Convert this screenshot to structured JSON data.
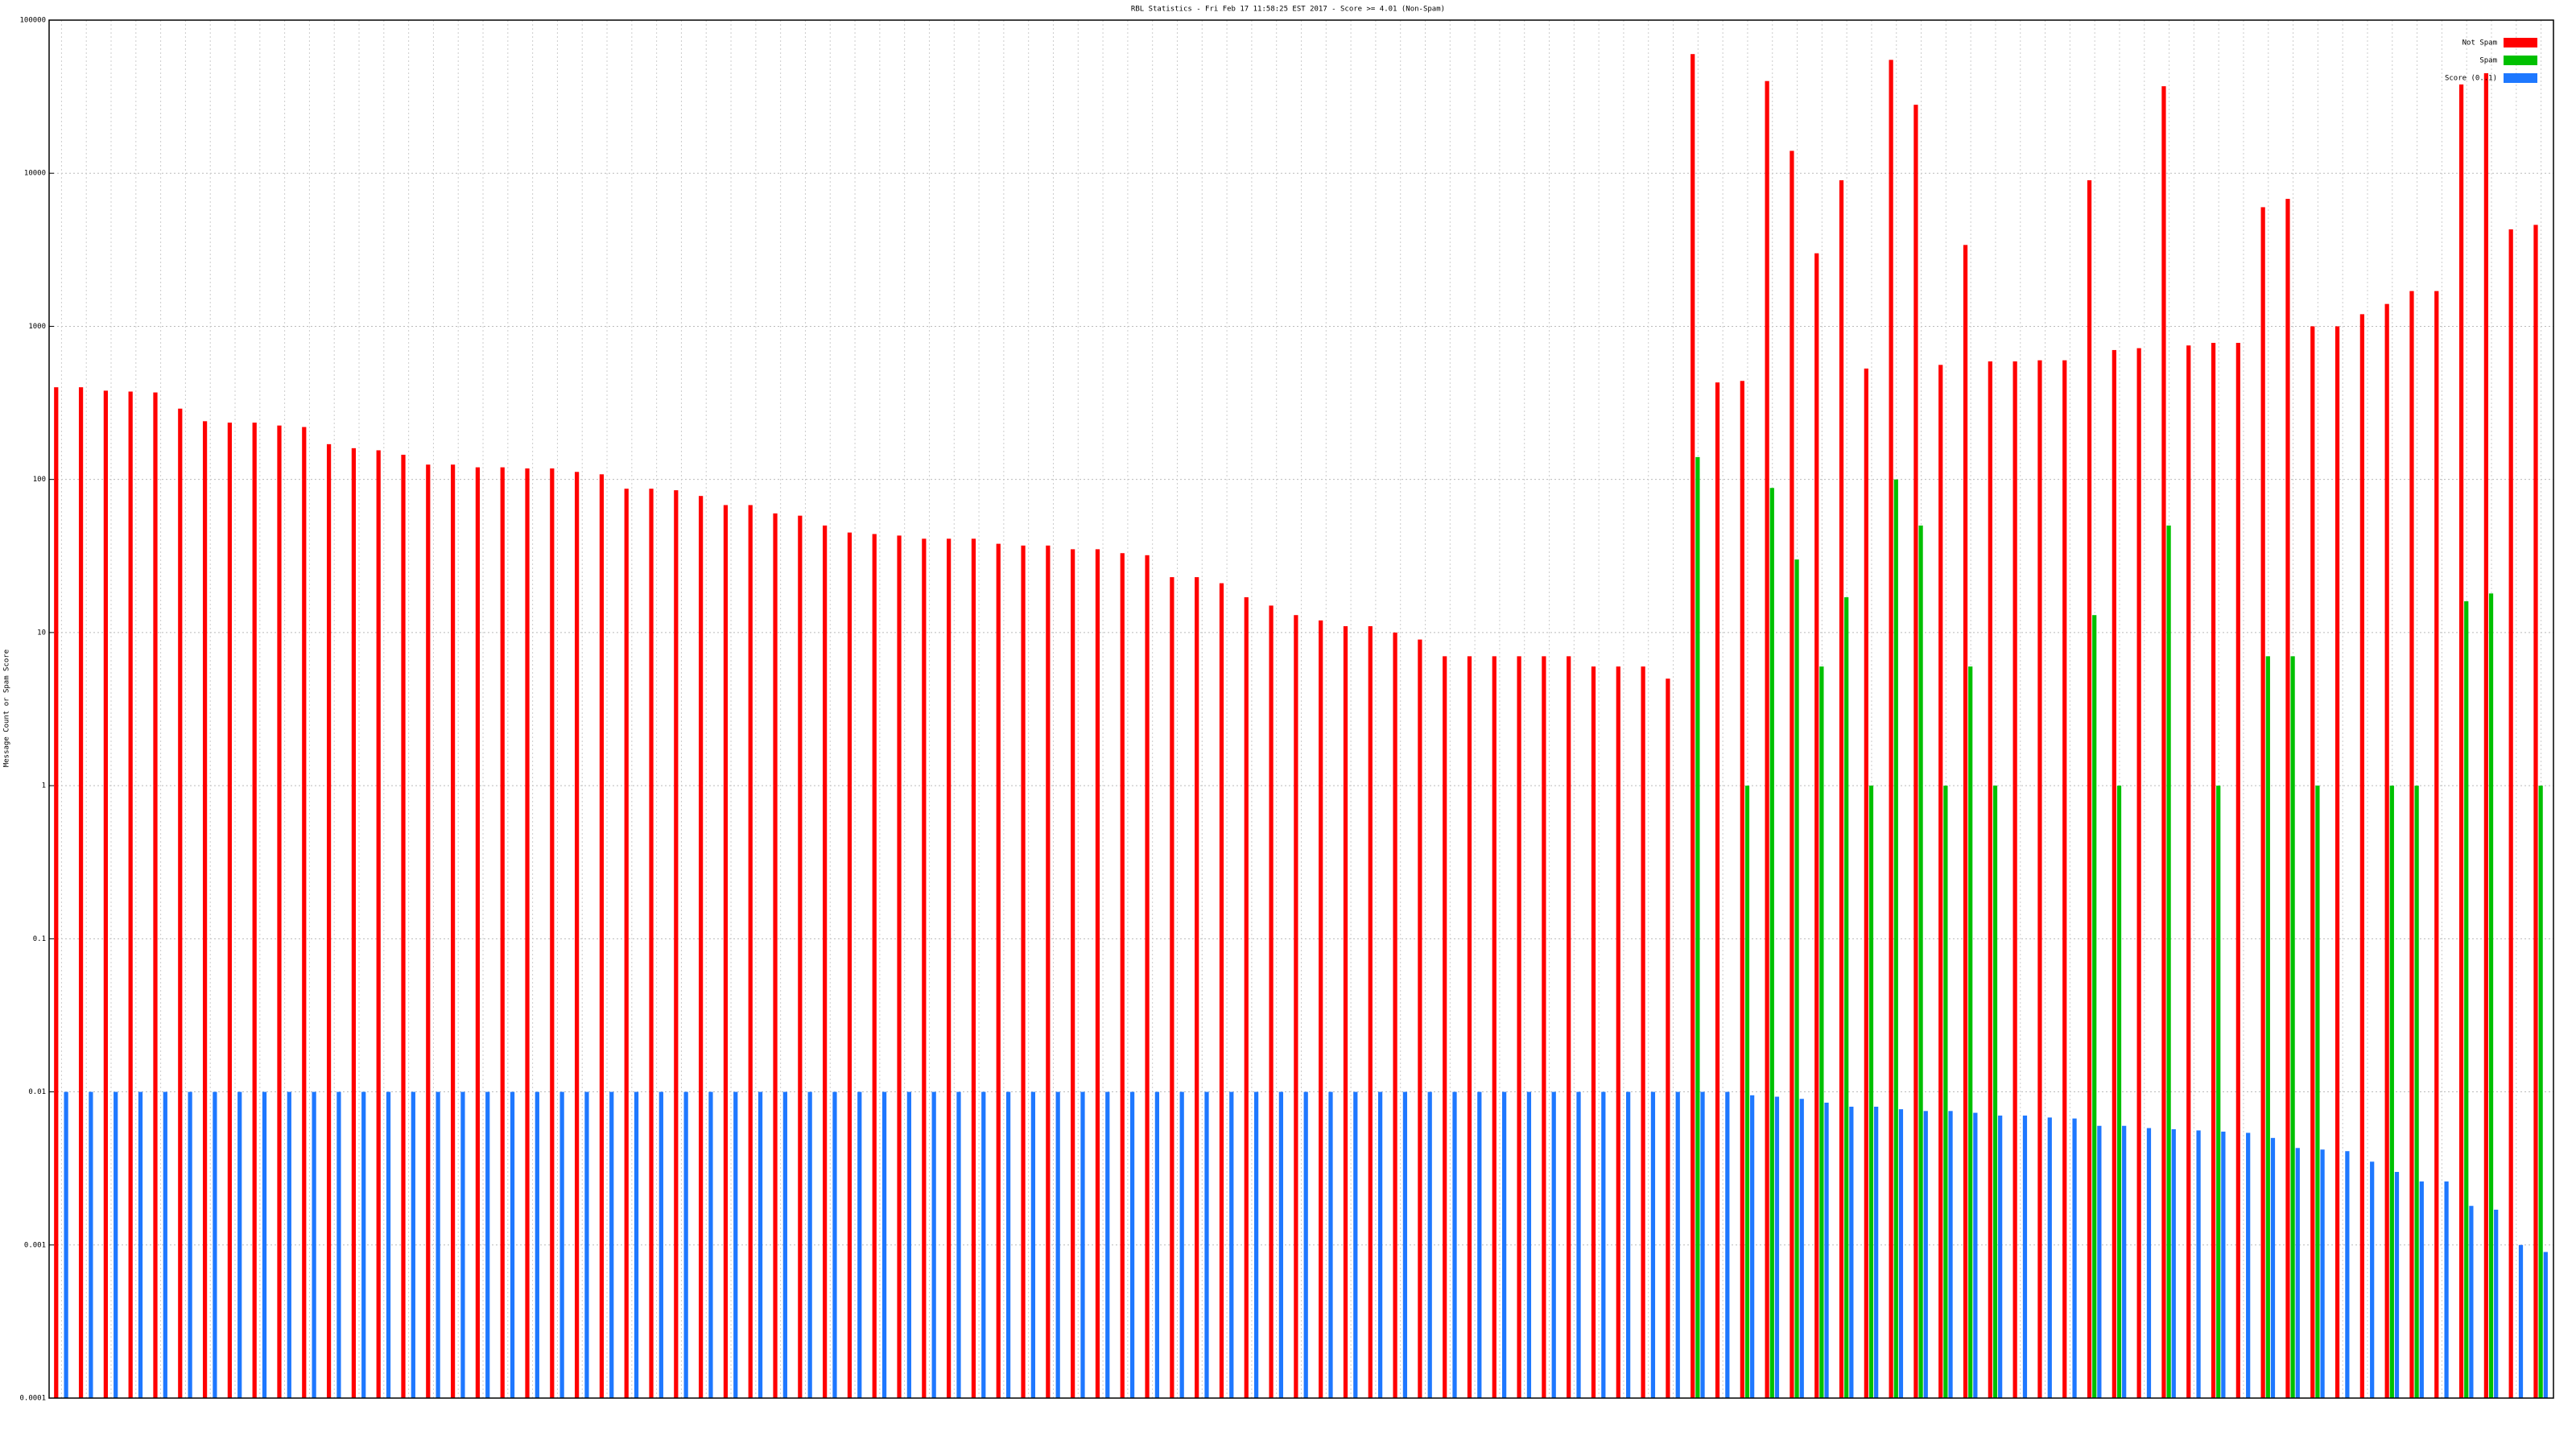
{
  "chart_data": {
    "type": "bar",
    "log_scale": true,
    "grid": true,
    "legend": "top-right",
    "title": "RBL Statistics - Fri Feb 17 11:58:25 EST 2017 - Score >= 4.01 (Non-Spam)",
    "y_label": "Message Count or Spam Score",
    "categories": [
      null,
      null,
      null,
      null,
      null,
      null,
      null,
      null,
      null,
      null,
      null,
      null,
      null,
      null,
      null,
      null,
      null,
      null,
      null,
      null,
      null,
      null,
      null,
      null,
      null,
      null,
      null,
      null,
      null,
      null,
      null,
      null,
      null,
      null,
      null,
      null,
      null,
      null,
      null,
      null,
      null,
      null,
      null,
      null,
      null,
      null,
      null,
      null,
      null,
      null,
      null,
      null,
      null,
      null,
      null,
      null,
      null,
      null,
      null,
      null,
      null,
      null,
      null,
      null,
      null,
      null,
      null,
      null,
      null,
      null,
      null,
      null,
      null,
      null,
      null,
      null,
      null,
      null,
      null,
      null,
      null,
      null,
      null,
      null,
      null,
      null,
      null,
      null,
      null,
      null,
      null,
      null,
      null,
      null,
      null,
      null,
      null,
      null,
      null,
      null,
      null
    ],
    "ylim": [
      0.0001,
      100000
    ],
    "yticks": [
      0.0001,
      0.001,
      0.01,
      0.1,
      1,
      10,
      100,
      1000,
      10000,
      100000
    ],
    "series": [
      {
        "name": "Not Spam",
        "color": "#ff0000",
        "values": [
          400,
          400,
          380,
          375,
          370,
          290,
          240,
          235,
          235,
          225,
          220,
          170,
          160,
          155,
          145,
          125,
          125,
          120,
          120,
          118,
          118,
          112,
          108,
          87,
          87,
          85,
          78,
          68,
          68,
          60,
          58,
          50,
          45,
          44,
          43,
          41,
          41,
          41,
          38,
          37,
          37,
          35,
          35,
          33,
          32,
          23,
          23,
          21,
          17,
          15,
          13,
          12,
          11,
          11,
          10,
          9,
          7,
          7,
          7,
          7,
          7,
          7,
          6,
          6,
          6,
          5,
          60000,
          430,
          440,
          40000,
          14000,
          3000,
          9000,
          530,
          55000,
          28000,
          560,
          3400,
          590,
          590,
          600,
          600,
          9000,
          700,
          720,
          37000,
          750,
          780,
          780,
          6000,
          6800,
          1000,
          1000,
          1200,
          1400,
          1700,
          1700,
          38000,
          45000,
          4300,
          4600
        ]
      },
      {
        "name": "Spam",
        "color": "#00c000",
        "values": [
          null,
          null,
          null,
          null,
          null,
          null,
          null,
          null,
          null,
          null,
          null,
          null,
          null,
          null,
          null,
          null,
          null,
          null,
          null,
          null,
          null,
          null,
          null,
          null,
          null,
          null,
          null,
          null,
          null,
          null,
          null,
          null,
          null,
          null,
          null,
          null,
          null,
          null,
          null,
          null,
          null,
          null,
          null,
          null,
          null,
          null,
          null,
          null,
          null,
          null,
          null,
          null,
          null,
          null,
          null,
          null,
          null,
          null,
          null,
          null,
          null,
          null,
          null,
          null,
          null,
          null,
          140,
          null,
          1,
          88,
          30,
          6,
          17,
          1,
          100,
          50,
          1,
          6,
          1,
          null,
          null,
          null,
          13,
          1,
          null,
          50,
          null,
          1,
          null,
          7,
          7,
          1,
          null,
          null,
          1,
          1,
          null,
          16,
          18,
          null,
          1
        ]
      },
      {
        "name": "Score (0..1)",
        "color": "#1e78ff",
        "values": [
          0.01,
          0.01,
          0.01,
          0.01,
          0.01,
          0.01,
          0.01,
          0.01,
          0.01,
          0.01,
          0.01,
          0.01,
          0.01,
          0.01,
          0.01,
          0.01,
          0.01,
          0.01,
          0.01,
          0.01,
          0.01,
          0.01,
          0.01,
          0.01,
          0.01,
          0.01,
          0.01,
          0.01,
          0.01,
          0.01,
          0.01,
          0.01,
          0.01,
          0.01,
          0.01,
          0.01,
          0.01,
          0.01,
          0.01,
          0.01,
          0.01,
          0.01,
          0.01,
          0.01,
          0.01,
          0.01,
          0.01,
          0.01,
          0.01,
          0.01,
          0.01,
          0.01,
          0.01,
          0.01,
          0.01,
          0.01,
          0.01,
          0.01,
          0.01,
          0.01,
          0.01,
          0.01,
          0.01,
          0.01,
          0.01,
          0.01,
          0.01,
          0.01,
          0.0095,
          0.0093,
          0.009,
          0.0085,
          0.008,
          0.008,
          0.0077,
          0.0075,
          0.0075,
          0.0073,
          0.007,
          0.007,
          0.0068,
          0.0067,
          0.006,
          0.006,
          0.0058,
          0.0057,
          0.0056,
          0.0055,
          0.0054,
          0.005,
          0.0043,
          0.0042,
          0.0041,
          0.0035,
          0.003,
          0.0026,
          0.0026,
          0.0018,
          0.0017,
          0.001,
          0.0009
        ]
      }
    ]
  }
}
